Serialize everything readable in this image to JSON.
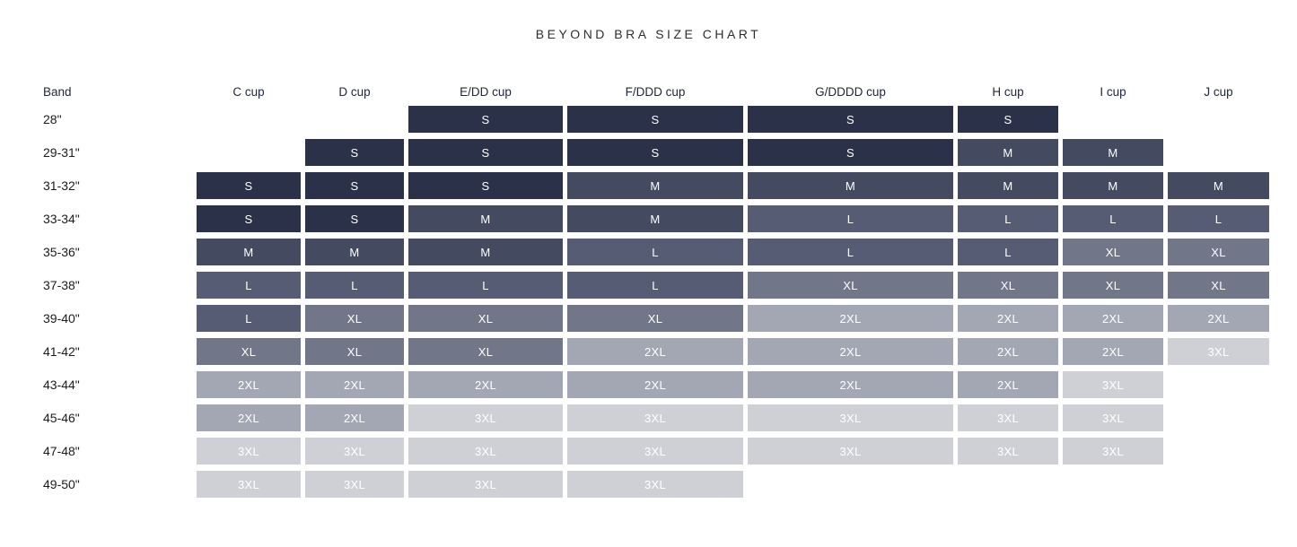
{
  "title": "BEYOND BRA SIZE CHART",
  "chart_data": {
    "type": "table",
    "title": "BEYOND BRA SIZE CHART",
    "row_header_label": "Band",
    "columns": [
      "C cup",
      "D cup",
      "E/DD cup",
      "F/DDD cup",
      "G/DDDD cup",
      "H cup",
      "I cup",
      "J cup"
    ],
    "rows": [
      {
        "band": "28\"",
        "sizes": [
          "",
          "",
          "S",
          "S",
          "S",
          "S",
          "",
          ""
        ]
      },
      {
        "band": "29-31\"",
        "sizes": [
          "",
          "S",
          "S",
          "S",
          "S",
          "M",
          "M",
          ""
        ]
      },
      {
        "band": "31-32\"",
        "sizes": [
          "S",
          "S",
          "S",
          "M",
          "M",
          "M",
          "M",
          "M"
        ]
      },
      {
        "band": "33-34\"",
        "sizes": [
          "S",
          "S",
          "M",
          "M",
          "L",
          "L",
          "L",
          "L"
        ]
      },
      {
        "band": "35-36\"",
        "sizes": [
          "M",
          "M",
          "M",
          "L",
          "L",
          "L",
          "XL",
          "XL"
        ]
      },
      {
        "band": "37-38\"",
        "sizes": [
          "L",
          "L",
          "L",
          "L",
          "XL",
          "XL",
          "XL",
          "XL"
        ]
      },
      {
        "band": "39-40\"",
        "sizes": [
          "L",
          "XL",
          "XL",
          "XL",
          "2XL",
          "2XL",
          "2XL",
          "2XL"
        ]
      },
      {
        "band": "41-42\"",
        "sizes": [
          "XL",
          "XL",
          "XL",
          "2XL",
          "2XL",
          "2XL",
          "2XL",
          "3XL"
        ]
      },
      {
        "band": "43-44\"",
        "sizes": [
          "2XL",
          "2XL",
          "2XL",
          "2XL",
          "2XL",
          "2XL",
          "3XL",
          ""
        ]
      },
      {
        "band": "45-46\"",
        "sizes": [
          "2XL",
          "2XL",
          "3XL",
          "3XL",
          "3XL",
          "3XL",
          "3XL",
          ""
        ]
      },
      {
        "band": "47-48\"",
        "sizes": [
          "3XL",
          "3XL",
          "3XL",
          "3XL",
          "3XL",
          "3XL",
          "3XL",
          ""
        ]
      },
      {
        "band": "49-50\"",
        "sizes": [
          "3XL",
          "3XL",
          "3XL",
          "3XL",
          "",
          "",
          "",
          ""
        ]
      }
    ],
    "size_colors": {
      "S": "#2b3149",
      "M": "#444b60",
      "L": "#565c73",
      "XL": "#717689",
      "2XL": "#a3a7b3",
      "3XL": "#ced0d6"
    },
    "cell_text_color": "#ffffff"
  }
}
